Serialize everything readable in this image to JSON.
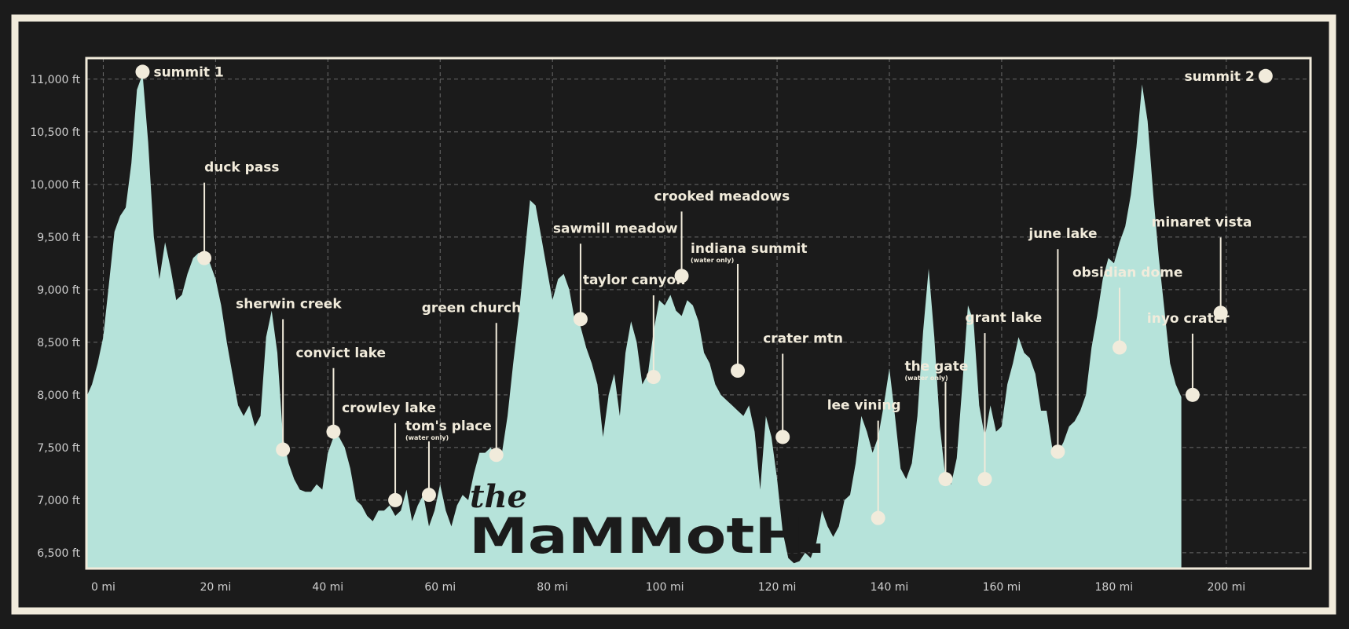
{
  "chart_data": {
    "type": "area",
    "title": "",
    "xlabel": "",
    "ylabel": "",
    "xlim": [
      -3,
      215
    ],
    "ylim": [
      6350,
      11200
    ],
    "x_ticks": [
      {
        "value": 0,
        "label": "0 mi"
      },
      {
        "value": 20,
        "label": "20 mi"
      },
      {
        "value": 40,
        "label": "40 mi"
      },
      {
        "value": 60,
        "label": "60 mi"
      },
      {
        "value": 80,
        "label": "80 mi"
      },
      {
        "value": 100,
        "label": "100 mi"
      },
      {
        "value": 120,
        "label": "120 mi"
      },
      {
        "value": 140,
        "label": "140 mi"
      },
      {
        "value": 160,
        "label": "160 mi"
      },
      {
        "value": 180,
        "label": "180 mi"
      },
      {
        "value": 200,
        "label": "200 mi"
      }
    ],
    "y_ticks": [
      {
        "value": 6500,
        "label": "6,500 ft"
      },
      {
        "value": 7000,
        "label": "7,000 ft"
      },
      {
        "value": 7500,
        "label": "7,500 ft"
      },
      {
        "value": 8000,
        "label": "8,000 ft"
      },
      {
        "value": 8500,
        "label": "8,500 ft"
      },
      {
        "value": 9000,
        "label": "9,000 ft"
      },
      {
        "value": 9500,
        "label": "9,500 ft"
      },
      {
        "value": 10000,
        "label": "10,000 ft"
      },
      {
        "value": 10500,
        "label": "10,500 ft"
      },
      {
        "value": 11000,
        "label": "11,000 ft"
      }
    ],
    "grid": true,
    "colors": {
      "area": "#b6e3da",
      "background": "#1b1b1b",
      "frame": "#f1ebdb",
      "label": "#f1ebdb",
      "marker": "#f1ebdb",
      "grid": "#6a6a6a"
    },
    "profile": [
      [
        -3,
        7980
      ],
      [
        -2,
        8100
      ],
      [
        -1,
        8300
      ],
      [
        0,
        8550
      ],
      [
        1,
        9050
      ],
      [
        2,
        9550
      ],
      [
        3,
        9700
      ],
      [
        4,
        9780
      ],
      [
        5,
        10200
      ],
      [
        6,
        10900
      ],
      [
        7,
        11050
      ],
      [
        8,
        10400
      ],
      [
        9,
        9500
      ],
      [
        10,
        9100
      ],
      [
        11,
        9450
      ],
      [
        12,
        9200
      ],
      [
        13,
        8900
      ],
      [
        14,
        8950
      ],
      [
        15,
        9150
      ],
      [
        16,
        9300
      ],
      [
        17,
        9350
      ],
      [
        18,
        9300
      ],
      [
        19,
        9250
      ],
      [
        20,
        9100
      ],
      [
        21,
        8850
      ],
      [
        22,
        8500
      ],
      [
        23,
        8200
      ],
      [
        24,
        7900
      ],
      [
        25,
        7800
      ],
      [
        26,
        7900
      ],
      [
        27,
        7700
      ],
      [
        28,
        7800
      ],
      [
        29,
        8550
      ],
      [
        30,
        8800
      ],
      [
        31,
        8400
      ],
      [
        32,
        7600
      ],
      [
        33,
        7350
      ],
      [
        34,
        7200
      ],
      [
        35,
        7100
      ],
      [
        36,
        7080
      ],
      [
        37,
        7080
      ],
      [
        38,
        7150
      ],
      [
        39,
        7100
      ],
      [
        40,
        7450
      ],
      [
        41,
        7600
      ],
      [
        42,
        7600
      ],
      [
        43,
        7500
      ],
      [
        44,
        7300
      ],
      [
        45,
        7000
      ],
      [
        46,
        6950
      ],
      [
        47,
        6850
      ],
      [
        48,
        6800
      ],
      [
        49,
        6900
      ],
      [
        50,
        6900
      ],
      [
        51,
        6950
      ],
      [
        52,
        6850
      ],
      [
        53,
        6900
      ],
      [
        54,
        7100
      ],
      [
        55,
        6800
      ],
      [
        56,
        6950
      ],
      [
        57,
        7050
      ],
      [
        58,
        6750
      ],
      [
        59,
        6900
      ],
      [
        60,
        7150
      ],
      [
        61,
        6900
      ],
      [
        62,
        6750
      ],
      [
        63,
        6950
      ],
      [
        64,
        7050
      ],
      [
        65,
        7000
      ],
      [
        66,
        7250
      ],
      [
        67,
        7450
      ],
      [
        68,
        7450
      ],
      [
        69,
        7500
      ],
      [
        70,
        7400
      ],
      [
        71,
        7450
      ],
      [
        72,
        7800
      ],
      [
        73,
        8300
      ],
      [
        74,
        8750
      ],
      [
        75,
        9300
      ],
      [
        76,
        9850
      ],
      [
        77,
        9800
      ],
      [
        78,
        9500
      ],
      [
        79,
        9200
      ],
      [
        80,
        8900
      ],
      [
        81,
        9100
      ],
      [
        82,
        9150
      ],
      [
        83,
        9000
      ],
      [
        84,
        8700
      ],
      [
        85,
        8650
      ],
      [
        86,
        8450
      ],
      [
        87,
        8300
      ],
      [
        88,
        8100
      ],
      [
        89,
        7600
      ],
      [
        90,
        8000
      ],
      [
        91,
        8200
      ],
      [
        92,
        7800
      ],
      [
        93,
        8400
      ],
      [
        94,
        8700
      ],
      [
        95,
        8500
      ],
      [
        96,
        8100
      ],
      [
        97,
        8200
      ],
      [
        98,
        8600
      ],
      [
        99,
        8900
      ],
      [
        100,
        8850
      ],
      [
        101,
        8950
      ],
      [
        102,
        8800
      ],
      [
        103,
        8750
      ],
      [
        104,
        8900
      ],
      [
        105,
        8850
      ],
      [
        106,
        8700
      ],
      [
        107,
        8400
      ],
      [
        108,
        8300
      ],
      [
        109,
        8100
      ],
      [
        110,
        8000
      ],
      [
        111,
        7950
      ],
      [
        112,
        7900
      ],
      [
        113,
        7850
      ],
      [
        114,
        7800
      ],
      [
        115,
        7900
      ],
      [
        116,
        7650
      ],
      [
        117,
        7100
      ],
      [
        118,
        7800
      ],
      [
        119,
        7600
      ],
      [
        120,
        7200
      ],
      [
        121,
        6700
      ],
      [
        122,
        6450
      ],
      [
        123,
        6400
      ],
      [
        124,
        6420
      ],
      [
        125,
        6500
      ],
      [
        126,
        6450
      ],
      [
        127,
        6600
      ],
      [
        128,
        6900
      ],
      [
        129,
        6750
      ],
      [
        130,
        6650
      ],
      [
        131,
        6750
      ],
      [
        132,
        7000
      ],
      [
        133,
        7050
      ],
      [
        134,
        7350
      ],
      [
        135,
        7800
      ],
      [
        136,
        7650
      ],
      [
        137,
        7450
      ],
      [
        138,
        7600
      ],
      [
        139,
        7900
      ],
      [
        140,
        8250
      ],
      [
        141,
        7800
      ],
      [
        142,
        7300
      ],
      [
        143,
        7200
      ],
      [
        144,
        7350
      ],
      [
        145,
        7800
      ],
      [
        146,
        8600
      ],
      [
        147,
        9200
      ],
      [
        148,
        8550
      ],
      [
        149,
        7700
      ],
      [
        150,
        7200
      ],
      [
        151,
        7150
      ],
      [
        152,
        7400
      ],
      [
        153,
        8100
      ],
      [
        154,
        8850
      ],
      [
        155,
        8700
      ],
      [
        156,
        7900
      ],
      [
        157,
        7600
      ],
      [
        158,
        7900
      ],
      [
        159,
        7650
      ],
      [
        160,
        7700
      ],
      [
        161,
        8100
      ],
      [
        162,
        8300
      ],
      [
        163,
        8550
      ],
      [
        164,
        8400
      ],
      [
        165,
        8350
      ],
      [
        166,
        8200
      ],
      [
        167,
        7850
      ],
      [
        168,
        7850
      ],
      [
        169,
        7500
      ],
      [
        170,
        7450
      ],
      [
        171,
        7550
      ],
      [
        172,
        7700
      ],
      [
        173,
        7750
      ],
      [
        174,
        7850
      ],
      [
        175,
        8000
      ],
      [
        176,
        8450
      ],
      [
        177,
        8750
      ],
      [
        178,
        9100
      ],
      [
        179,
        9300
      ],
      [
        180,
        9250
      ],
      [
        181,
        9450
      ],
      [
        182,
        9600
      ],
      [
        183,
        9900
      ],
      [
        184,
        10350
      ],
      [
        185,
        10950
      ],
      [
        186,
        10600
      ],
      [
        187,
        9900
      ],
      [
        188,
        9300
      ],
      [
        189,
        8800
      ],
      [
        190,
        8300
      ],
      [
        191,
        8100
      ],
      [
        192,
        7980
      ]
    ],
    "waypoints": [
      {
        "name": "summit 1",
        "sub": "",
        "mile": 7,
        "elev": 11070
      },
      {
        "name": "duck pass",
        "sub": "",
        "mile": 18,
        "elev": 9300
      },
      {
        "name": "sherwin creek",
        "sub": "",
        "mile": 32,
        "elev": 7480
      },
      {
        "name": "convict lake",
        "sub": "",
        "mile": 41,
        "elev": 7650
      },
      {
        "name": "crowley lake",
        "sub": "",
        "mile": 52,
        "elev": 7000
      },
      {
        "name": "tom's place",
        "sub": "(water only)",
        "mile": 58,
        "elev": 7050
      },
      {
        "name": "green church",
        "sub": "",
        "mile": 70,
        "elev": 7430
      },
      {
        "name": "sawmill meadow",
        "sub": "",
        "mile": 85,
        "elev": 8720
      },
      {
        "name": "taylor canyon",
        "sub": "",
        "mile": 98,
        "elev": 8170
      },
      {
        "name": "crooked meadows",
        "sub": "",
        "mile": 103,
        "elev": 9130
      },
      {
        "name": "indiana summit",
        "sub": "(water only)",
        "mile": 113,
        "elev": 8230
      },
      {
        "name": "crater mtn",
        "sub": "",
        "mile": 121,
        "elev": 7600
      },
      {
        "name": "lee vining",
        "sub": "",
        "mile": 138,
        "elev": 6830
      },
      {
        "name": "the gate",
        "sub": "(water only)",
        "mile": 150,
        "elev": 7200
      },
      {
        "name": "grant lake",
        "sub": "",
        "mile": 157,
        "elev": 7200
      },
      {
        "name": "june lake",
        "sub": "",
        "mile": 170,
        "elev": 7460
      },
      {
        "name": "obsidian dome",
        "sub": "",
        "mile": 181,
        "elev": 8450
      },
      {
        "name": "inyo crater",
        "sub": "",
        "mile": 194,
        "elev": 8000
      },
      {
        "name": "minaret vista",
        "sub": "",
        "mile": 199,
        "elev": 8780
      },
      {
        "name": "summit 2",
        "sub": "",
        "mile": 207,
        "elev": 11030
      }
    ]
  },
  "logo": {
    "line1": "the",
    "line2": "MaMMotH."
  }
}
